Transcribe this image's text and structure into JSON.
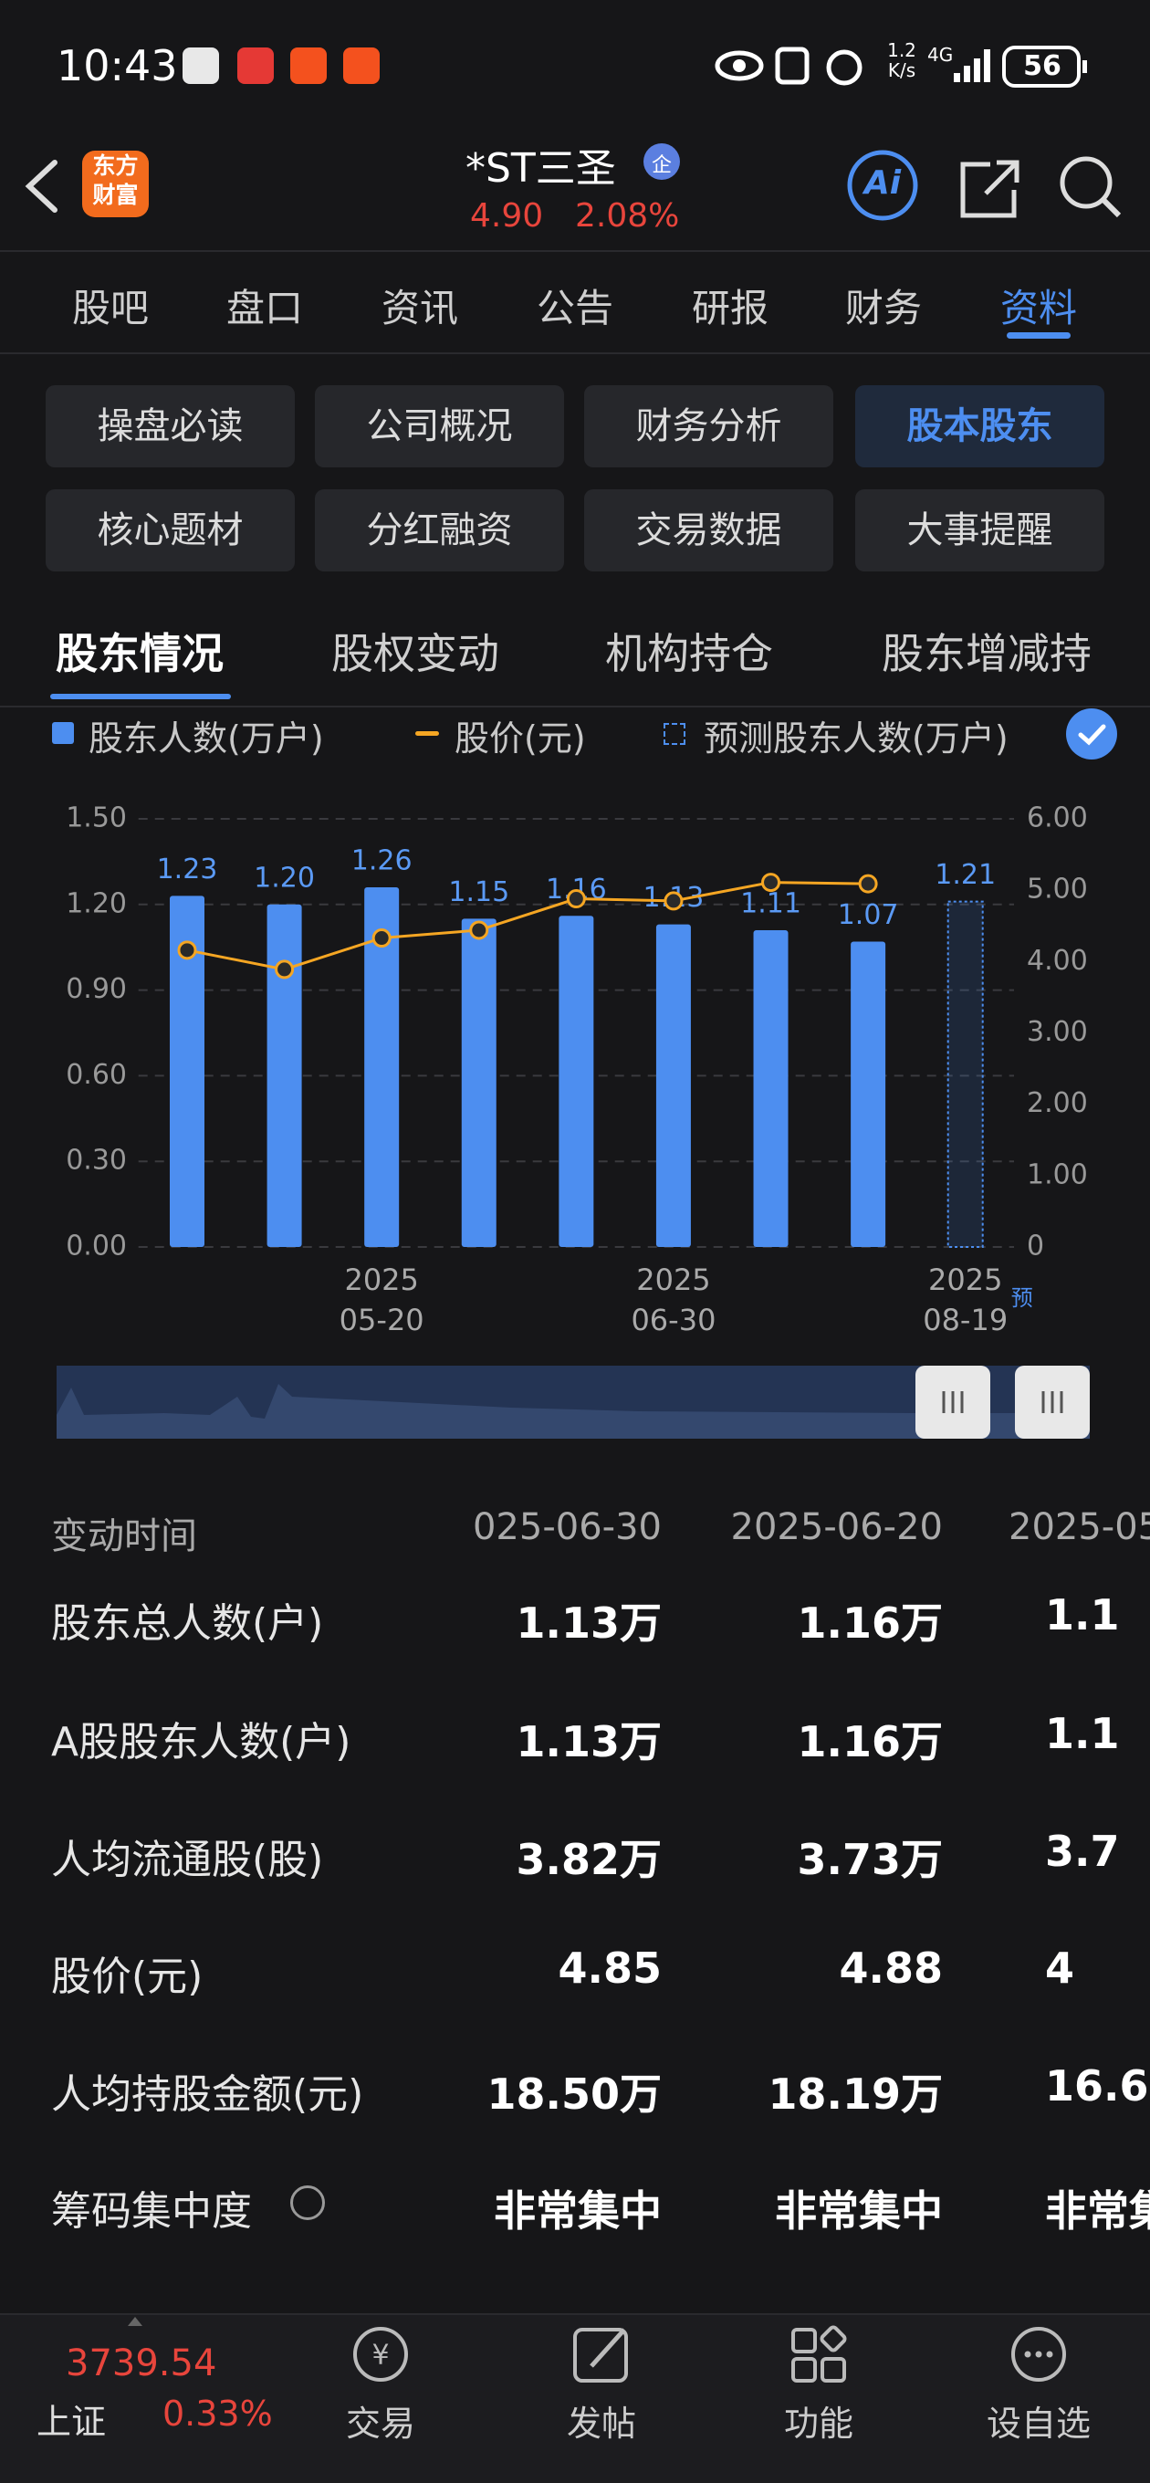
{
  "status_bar": {
    "time": "10:43",
    "speed_value": "1.2",
    "speed_unit": "K/s",
    "network": "4G",
    "battery": "56"
  },
  "header": {
    "logo": "东方\n财富",
    "title": "*ST三圣",
    "badge": "企",
    "price": "4.90",
    "change": "2.08%",
    "ai": "Ai"
  },
  "tabs": {
    "items": [
      "股吧",
      "盘口",
      "资讯",
      "公告",
      "研报",
      "财务",
      "资料"
    ],
    "active": 6
  },
  "sub_tabs": {
    "items": [
      "操盘必读",
      "公司概况",
      "财务分析",
      "股本股东",
      "核心题材",
      "分红融资",
      "交易数据",
      "大事提醒"
    ],
    "active": 3
  },
  "section_tabs": {
    "items": [
      "股东情况",
      "股权变动",
      "机构持仓",
      "股东增减持"
    ],
    "active": 0
  },
  "chart_data": {
    "type": "bar",
    "categories": [
      null,
      null,
      "2025\n05-20",
      null,
      null,
      "2025\n06-30",
      null,
      null,
      "2025\n08-19"
    ],
    "forecast_note": "预",
    "series": [
      {
        "name": "股东人数(万户)",
        "color": "#4d8ef0",
        "type": "bar",
        "values": [
          1.23,
          1.2,
          1.26,
          1.15,
          1.16,
          1.13,
          1.11,
          1.07,
          null
        ],
        "value_labels": [
          "1.23",
          "1.20",
          "1.26",
          "1.15",
          "1.16",
          "1.13",
          "1.11",
          "1.07",
          null
        ]
      },
      {
        "name": "股价(元)",
        "color": "#f5a623",
        "type": "line",
        "axis": "y2",
        "values": [
          4.16,
          3.89,
          4.33,
          4.44,
          4.88,
          4.85,
          5.11,
          5.09,
          null
        ]
      },
      {
        "name": "预测股东人数(万户)",
        "color": "#4d8ef0",
        "type": "forecast",
        "values": [
          null,
          null,
          null,
          null,
          null,
          null,
          null,
          null,
          1.21
        ],
        "value_labels": [
          null,
          null,
          null,
          null,
          null,
          null,
          null,
          null,
          "1.21"
        ]
      }
    ],
    "ylim": [
      0,
      1.5
    ],
    "yticks": [
      {
        "value": 0,
        "label": "0.00"
      },
      {
        "value": 0.3,
        "label": "0.30"
      },
      {
        "value": 0.6,
        "label": "0.60"
      },
      {
        "value": 0.9,
        "label": "0.90"
      },
      {
        "value": 1.2,
        "label": "1.20"
      },
      {
        "value": 1.5,
        "label": "1.50"
      }
    ],
    "y2lim": [
      0,
      6
    ],
    "y2ticks": [
      0,
      {
        "value": 1,
        "label": "1.00"
      },
      {
        "value": 2,
        "label": "2.00"
      },
      {
        "value": 3,
        "label": "3.00"
      },
      {
        "value": 4,
        "label": "4.00"
      },
      {
        "value": 5,
        "label": "5.00"
      },
      {
        "value": 6,
        "label": "6.00"
      }
    ],
    "grid": true
  },
  "table": {
    "header": [
      "变动时间",
      "025-06-30",
      "2025-06-20",
      "2025-05"
    ],
    "rows": [
      [
        "股东总人数(户)",
        "1.13万",
        "1.16万",
        "1.1"
      ],
      [
        "A股股东人数(户)",
        "1.13万",
        "1.16万",
        "1.1"
      ],
      [
        "人均流通股(股)",
        "3.82万",
        "3.73万",
        "3.7"
      ],
      [
        "股价(元)",
        "4.85",
        "4.88",
        "4"
      ],
      [
        "人均持股金额(元)",
        "18.50万",
        "18.19万",
        "16.6"
      ],
      [
        "筹码集中度",
        "非常集中",
        "非常集中",
        "非常集"
      ]
    ]
  },
  "bottom_bar": {
    "index_value": "3739.54",
    "index_name": "上证",
    "index_change": "0.33%",
    "items": [
      "交易",
      "发帖",
      "功能",
      "设自选"
    ]
  }
}
